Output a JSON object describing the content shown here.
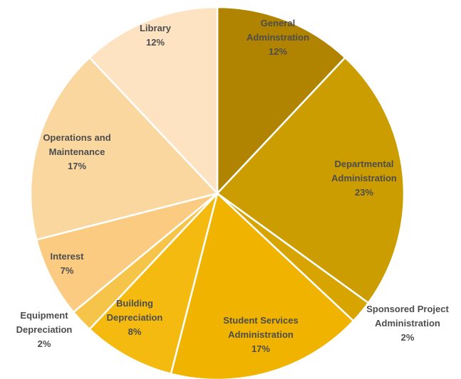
{
  "chart_data": {
    "type": "pie",
    "title": "",
    "start_angle_deg": 0,
    "direction": "clockwise",
    "slices": [
      {
        "label_lines": [
          "General",
          "Adminstration"
        ],
        "pct_label": "12%",
        "value": 12,
        "color": "#b08300"
      },
      {
        "label_lines": [
          "Departmental",
          "Administration"
        ],
        "pct_label": "23%",
        "value": 23,
        "color": "#cc9d00"
      },
      {
        "label_lines": [
          "Sponsored Project",
          "Administration"
        ],
        "pct_label": "2%",
        "value": 2,
        "color": "#d8a400"
      },
      {
        "label_lines": [
          "Student Services",
          "Administration"
        ],
        "pct_label": "17%",
        "value": 17,
        "color": "#f0b400"
      },
      {
        "label_lines": [
          "Building",
          "Depreciation"
        ],
        "pct_label": "8%",
        "value": 8,
        "color": "#f4ba10"
      },
      {
        "label_lines": [
          "Equipment",
          "Depreciation"
        ],
        "pct_label": "2%",
        "value": 2,
        "color": "#f7c44a"
      },
      {
        "label_lines": [
          "Interest"
        ],
        "pct_label": "7%",
        "value": 7,
        "color": "#facb80"
      },
      {
        "label_lines": [
          "Operations and",
          "Maintenance"
        ],
        "pct_label": "17%",
        "value": 17,
        "color": "#fbd7a0"
      },
      {
        "label_lines": [
          "Library"
        ],
        "pct_label": "12%",
        "value": 12,
        "color": "#fde3c2"
      }
    ]
  }
}
